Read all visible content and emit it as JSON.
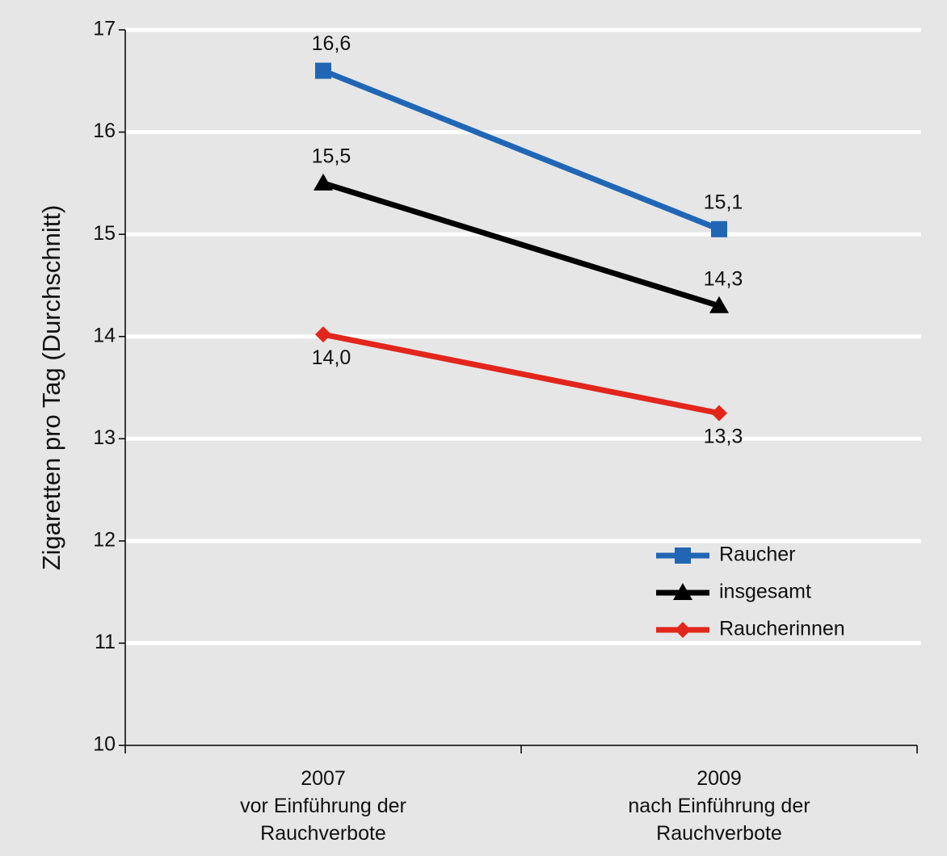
{
  "chart_data": {
    "type": "line",
    "ylabel": "Zigaretten pro Tag (Durchschnitt)",
    "categories": [
      "2007\nvor Einführung der\nRauchverbote",
      "2009\nnach Einführung der\nRauchverbote"
    ],
    "series": [
      {
        "name": "Raucher",
        "color": "#2166b5",
        "marker": "square",
        "values": [
          16.6,
          15.05
        ],
        "value_labels": [
          "16,6",
          "15,1"
        ]
      },
      {
        "name": "insgesamt",
        "color": "#000000",
        "marker": "triangle",
        "values": [
          15.5,
          14.3
        ],
        "value_labels": [
          "15,5",
          "14,3"
        ]
      },
      {
        "name": "Raucherinnen",
        "color": "#e2261c",
        "marker": "diamond",
        "values": [
          14.02,
          13.25
        ],
        "value_labels": [
          "14,0",
          "13,3"
        ]
      }
    ],
    "ylim": [
      10,
      17
    ],
    "yticks": [
      10,
      11,
      12,
      13,
      14,
      15,
      16,
      17
    ],
    "grid": true,
    "legend": "lower right"
  }
}
